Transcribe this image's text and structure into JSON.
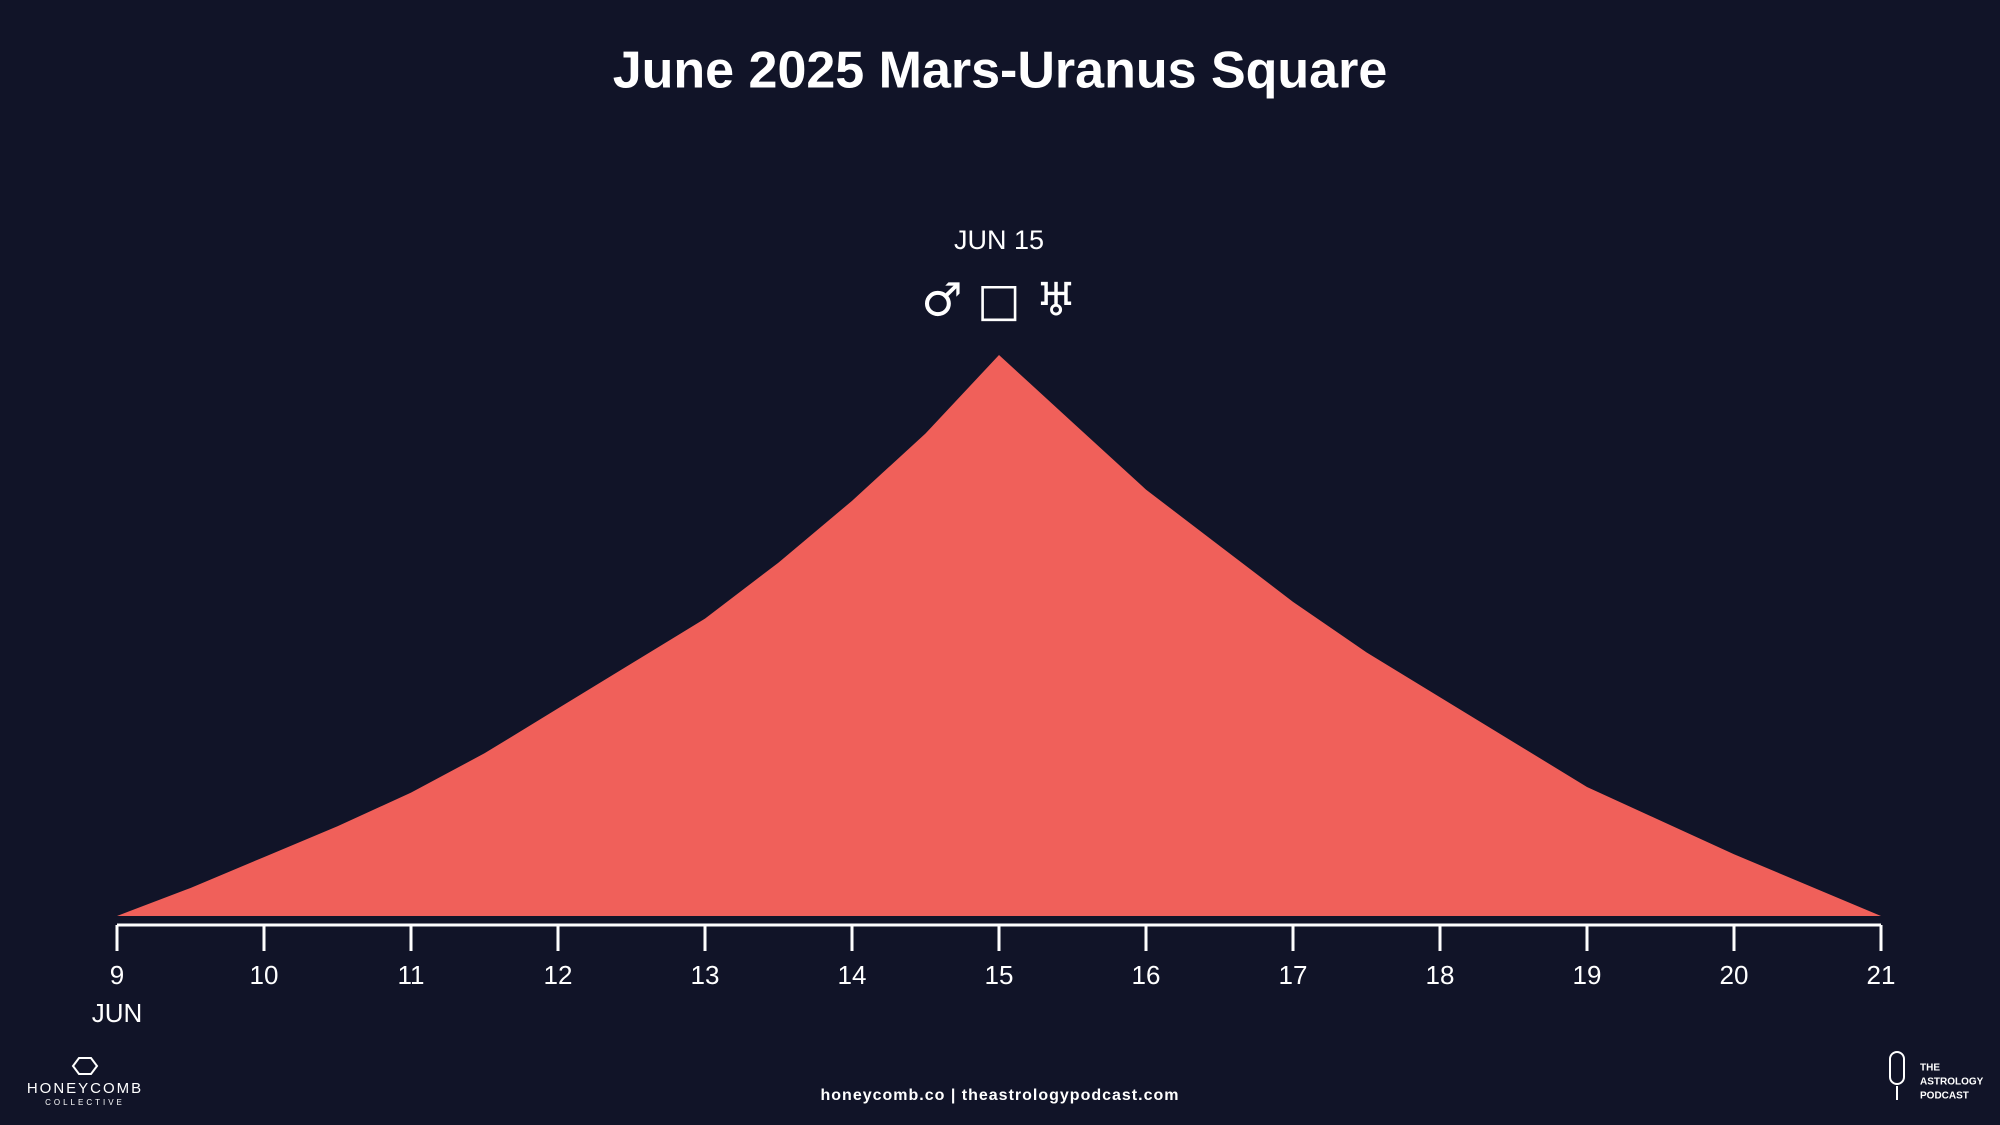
{
  "chart_data": {
    "type": "area",
    "title": "June 2025 Mars-Uranus Square",
    "x": [
      9,
      9.5,
      10,
      10.5,
      11,
      11.5,
      12,
      12.5,
      13,
      13.5,
      14,
      14.5,
      15,
      15.5,
      16,
      16.5,
      17,
      17.5,
      18,
      18.5,
      19,
      19.5,
      20,
      20.5,
      21
    ],
    "values": [
      0,
      5,
      10.5,
      16,
      22,
      29,
      37,
      45,
      53,
      63,
      74,
      86,
      100,
      88,
      76,
      66,
      56,
      47,
      39,
      31,
      23,
      17,
      11,
      5.5,
      0
    ],
    "color": "#f0605a",
    "xlim": [
      9,
      21
    ],
    "xticks": [
      9,
      10,
      11,
      12,
      13,
      14,
      15,
      16,
      17,
      18,
      19,
      20,
      21
    ],
    "xlabel": "JUN",
    "ylim": [
      0,
      100
    ],
    "annotations": [
      {
        "x": 15,
        "label": "JUN 15",
        "symbol": "♂ □ ♅"
      }
    ]
  },
  "footer": {
    "links": "honeycomb.co | theastrologypodcast.com",
    "left_logo": {
      "name": "HONEYCOMB",
      "tagline": "COLLECTIVE"
    },
    "right_logo": {
      "line1": "THE",
      "line2": "ASTROLOGY",
      "line3": "PODCAST"
    }
  }
}
